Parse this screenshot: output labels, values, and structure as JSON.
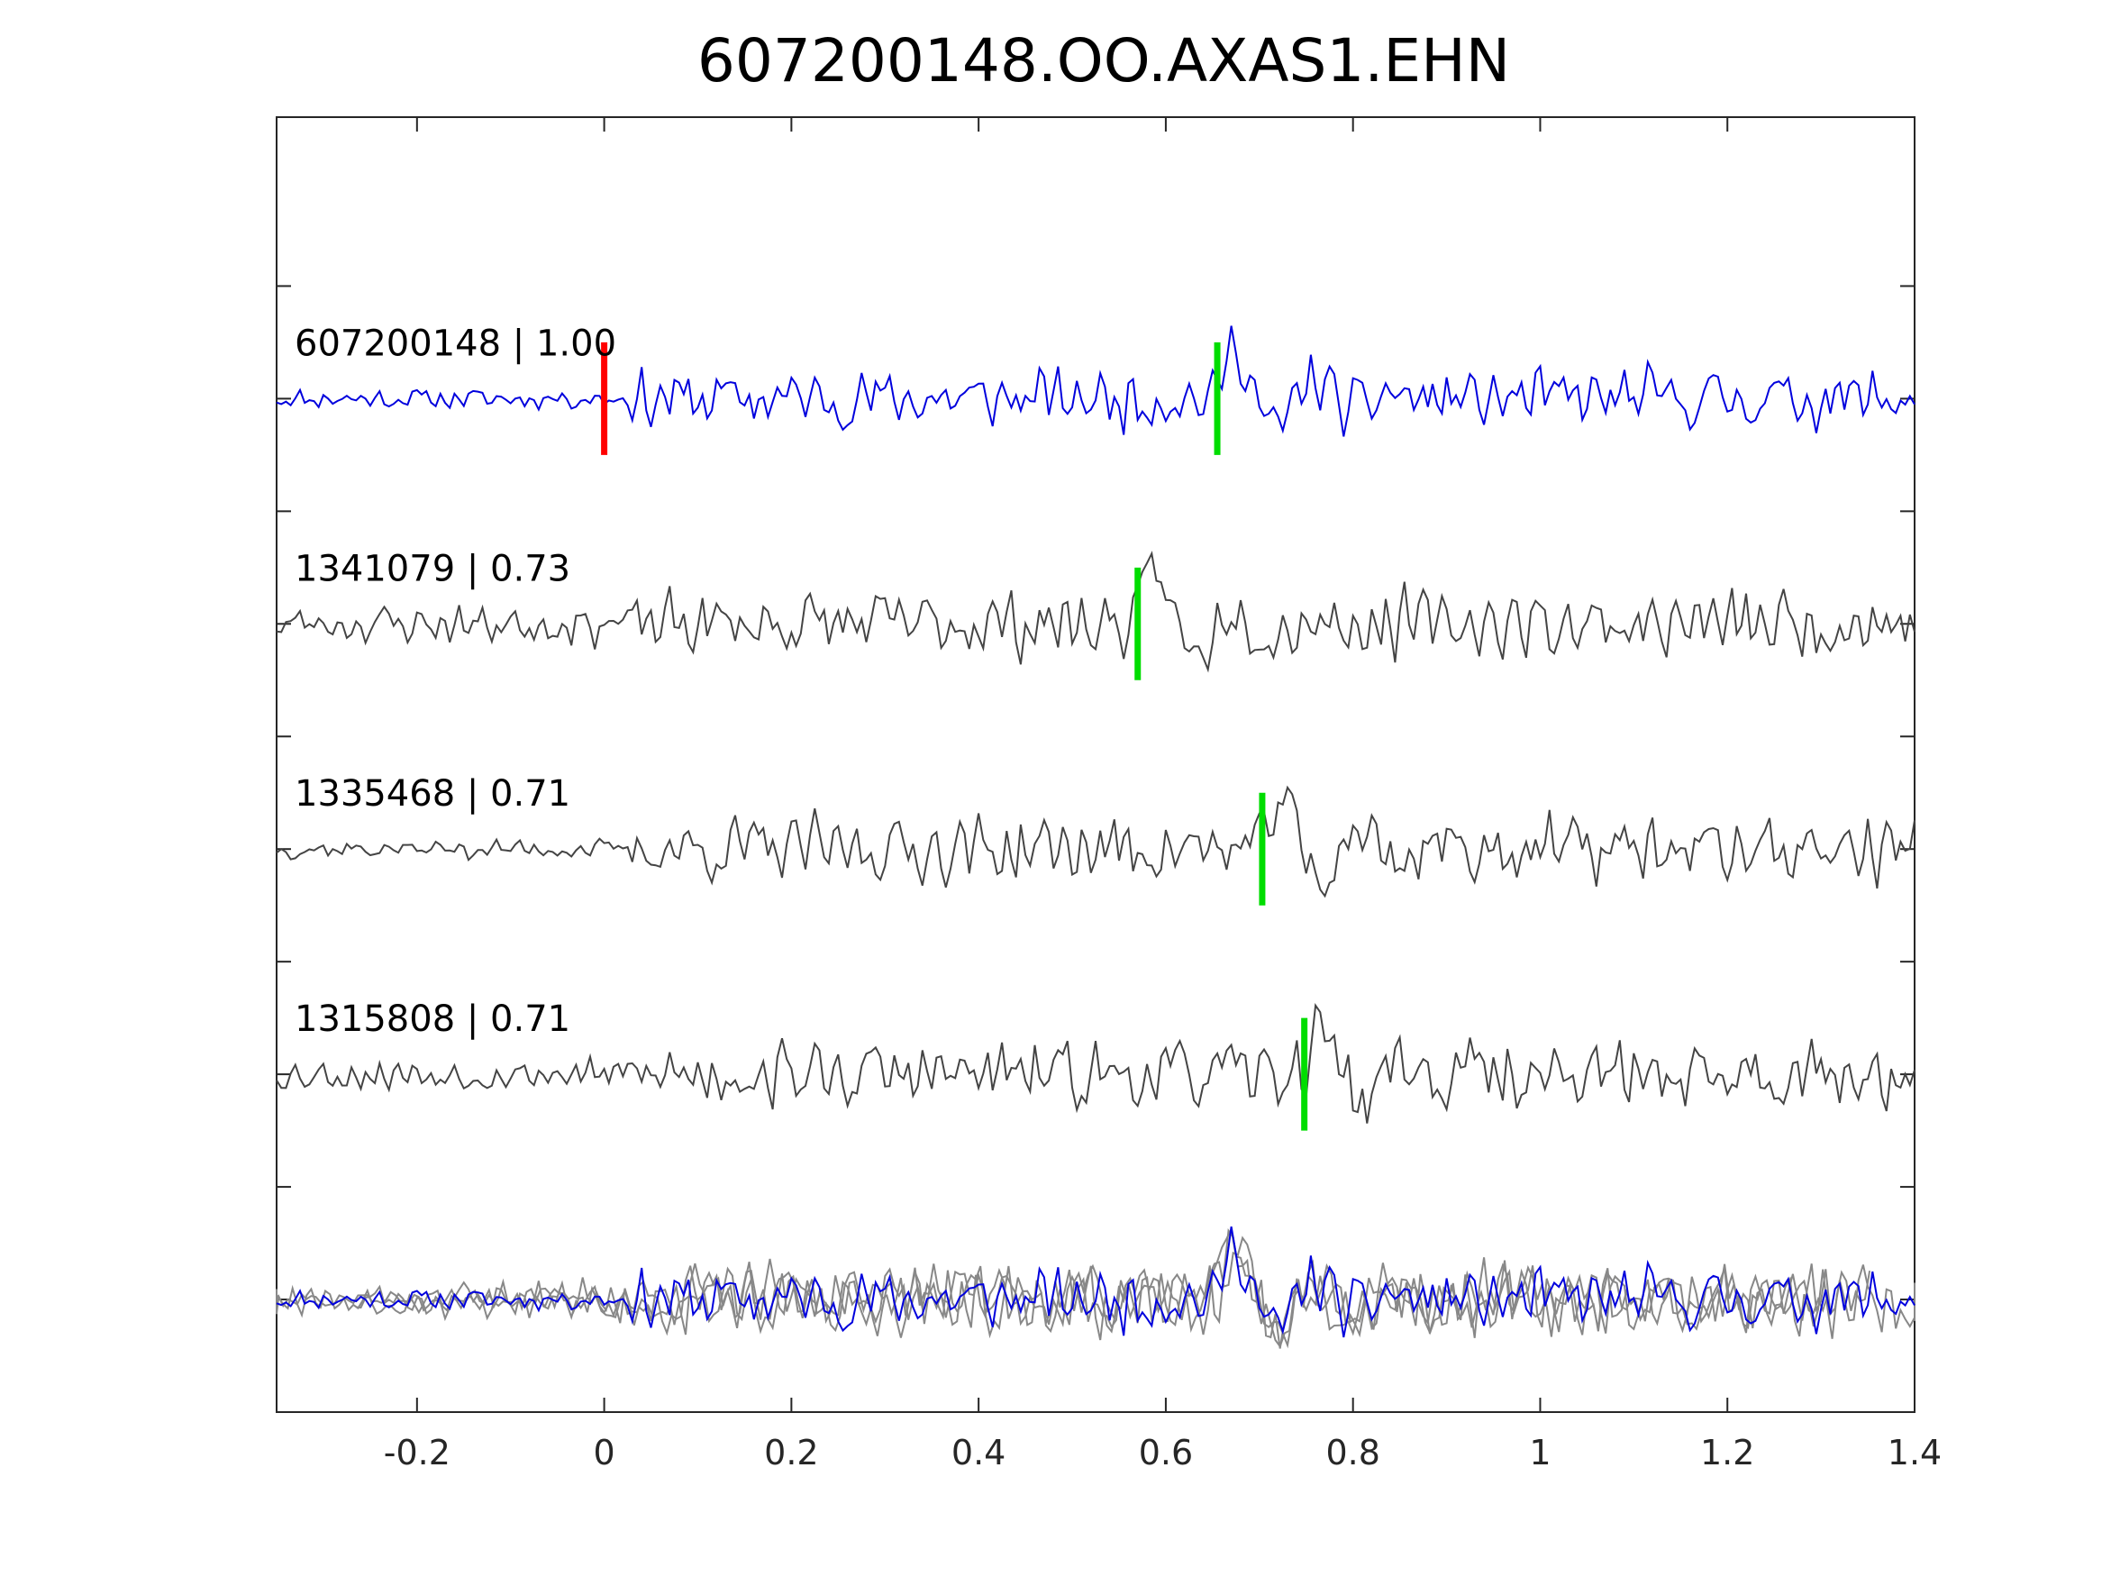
{
  "chart_data": {
    "type": "line",
    "title": "607200148.OO.AXAS1.EHN",
    "xlabel": "",
    "ylabel": "",
    "xlim": [
      -0.35,
      1.4
    ],
    "ylim": [
      -0.5,
      5.25
    ],
    "grid": false,
    "x_ticks": [
      {
        "value": -0.2,
        "label": "-0.2"
      },
      {
        "value": 0,
        "label": "0"
      },
      {
        "value": 0.2,
        "label": "0.2"
      },
      {
        "value": 0.4,
        "label": "0.4"
      },
      {
        "value": 0.6,
        "label": "0.6"
      },
      {
        "value": 0.8,
        "label": "0.8"
      },
      {
        "value": 1,
        "label": "1"
      },
      {
        "value": 1.2,
        "label": "1.2"
      },
      {
        "value": 1.4,
        "label": "1.4"
      }
    ],
    "y_ticks": [
      0,
      0.5,
      1,
      1.5,
      2,
      2.5,
      3,
      3.5,
      4,
      4.5
    ],
    "colors": {
      "main_trace": "#0000dd",
      "other_traces": "#444444",
      "overlay_traces": "#888888",
      "reference_pick": "#ff0000",
      "arrival_pick": "#00dd00",
      "axes": "#262626"
    },
    "series": [
      {
        "label": "607200148 | 1.00",
        "id": "607200148",
        "cc": 1.0,
        "offset": 4,
        "color": "#0000dd",
        "picks": [
          {
            "x": 0.0,
            "color": "#ff0000"
          },
          {
            "x": 0.655,
            "color": "#00dd00"
          }
        ],
        "arrival": 0.655,
        "seed": 11,
        "amp": 0.18,
        "pre_amp": 0.06
      },
      {
        "label": "1341079 | 0.73",
        "id": "1341079",
        "cc": 0.73,
        "offset": 3,
        "color": "#444444",
        "picks": [
          {
            "x": 0.57,
            "color": "#00dd00"
          }
        ],
        "arrival": 0.57,
        "seed": 23,
        "amp": 0.2,
        "pre_amp": 0.12
      },
      {
        "label": "1335468 | 0.71",
        "id": "1335468",
        "cc": 0.71,
        "offset": 2,
        "color": "#444444",
        "picks": [
          {
            "x": 0.703,
            "color": "#00dd00"
          }
        ],
        "arrival": 0.703,
        "seed": 37,
        "amp": 0.2,
        "pre_amp": 0.06
      },
      {
        "label": "1315808 | 0.71",
        "id": "1315808",
        "cc": 0.71,
        "offset": 1,
        "color": "#444444",
        "picks": [
          {
            "x": 0.748,
            "color": "#00dd00"
          }
        ],
        "arrival": 0.748,
        "seed": 53,
        "amp": 0.2,
        "pre_amp": 0.1
      }
    ],
    "stack": {
      "offset": 0,
      "main_color": "#0000dd",
      "other_color": "#888888"
    }
  }
}
